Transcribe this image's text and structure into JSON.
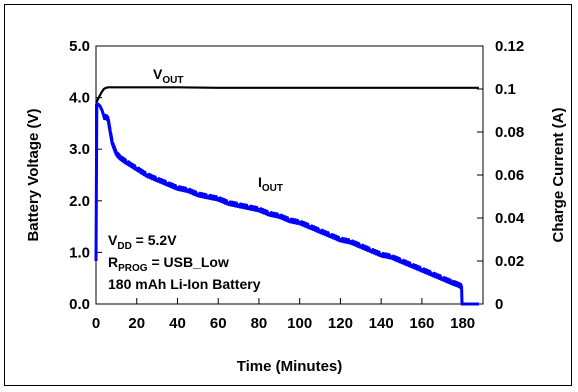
{
  "chart_data": {
    "type": "line",
    "title": "",
    "xlabel": "Time (Minutes)",
    "ylabel": "Battery Voltage (V)",
    "y2label": "Charge Current (A)",
    "xlim": [
      0,
      190
    ],
    "ylim": [
      0,
      5
    ],
    "y2lim": [
      0,
      0.12
    ],
    "xticks": [
      "0",
      "20",
      "40",
      "60",
      "80",
      "100",
      "120",
      "140",
      "160",
      "180"
    ],
    "xtick_values": [
      0,
      20,
      40,
      60,
      80,
      100,
      120,
      140,
      160,
      180
    ],
    "yticks": [
      "0.0",
      "1.0",
      "2.0",
      "3.0",
      "4.0",
      "5.0"
    ],
    "ytick_values": [
      0,
      1,
      2,
      3,
      4,
      5
    ],
    "y2ticks": [
      "0",
      "0.02",
      "0.04",
      "0.06",
      "0.08",
      "0.1",
      "0.12"
    ],
    "y2tick_values": [
      0,
      0.02,
      0.04,
      0.06,
      0.08,
      0.1,
      0.12
    ],
    "grid": false,
    "series": [
      {
        "name": "VOUT",
        "axis": "left",
        "color": "#000000",
        "x": [
          0,
          0.5,
          1,
          2,
          3,
          4,
          5,
          6,
          8,
          10,
          20,
          40,
          60,
          80,
          100,
          120,
          140,
          160,
          180,
          184,
          188
        ],
        "y": [
          3.9,
          3.93,
          3.97,
          4.05,
          4.12,
          4.17,
          4.19,
          4.2,
          4.2,
          4.2,
          4.2,
          4.2,
          4.19,
          4.19,
          4.19,
          4.19,
          4.19,
          4.19,
          4.19,
          4.19,
          4.19
        ]
      },
      {
        "name": "IOUT",
        "axis": "right",
        "color": "#0000ff",
        "x": [
          0,
          0.4,
          1,
          2,
          3,
          4,
          5,
          6,
          7,
          8,
          10,
          12,
          15,
          20,
          25,
          30,
          35,
          40,
          45,
          50,
          55,
          60,
          65,
          70,
          75,
          80,
          85,
          90,
          95,
          100,
          105,
          110,
          115,
          120,
          125,
          130,
          135,
          140,
          145,
          150,
          155,
          160,
          165,
          170,
          175,
          178,
          179.5,
          179.7,
          181,
          188
        ],
        "y": [
          0.02,
          0.093,
          0.093,
          0.092,
          0.09,
          0.087,
          0.087,
          0.086,
          0.08,
          0.075,
          0.07,
          0.068,
          0.066,
          0.063,
          0.06,
          0.058,
          0.056,
          0.054,
          0.053,
          0.051,
          0.05,
          0.049,
          0.047,
          0.046,
          0.045,
          0.044,
          0.042,
          0.041,
          0.039,
          0.038,
          0.036,
          0.034,
          0.032,
          0.03,
          0.029,
          0.027,
          0.025,
          0.023,
          0.022,
          0.02,
          0.018,
          0.016,
          0.014,
          0.012,
          0.01,
          0.009,
          0.008,
          0,
          0,
          0
        ]
      }
    ],
    "annotations": {
      "vout": {
        "main": "V",
        "sub": "OUT"
      },
      "iout": {
        "main": "I",
        "sub": "OUT"
      },
      "conditions": [
        {
          "main": "V",
          "sub": "DD",
          "rest": " = 5.2V"
        },
        {
          "main": "R",
          "sub": "PROG",
          "rest": " = USB_Low"
        },
        {
          "main": "180 mAh Li-Ion Battery",
          "sub": "",
          "rest": ""
        }
      ]
    }
  }
}
